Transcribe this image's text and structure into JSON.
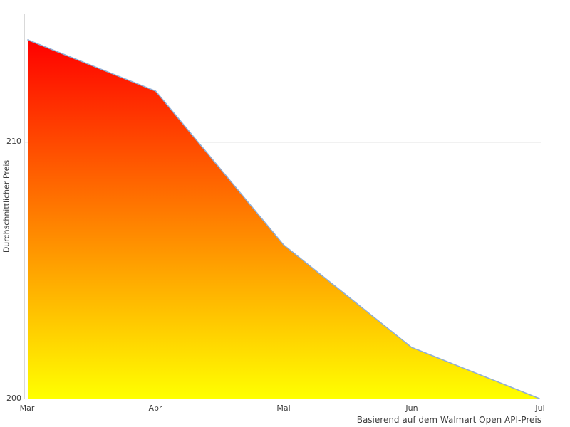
{
  "chart_data": {
    "type": "area",
    "categories": [
      "Mar",
      "Apr",
      "Mai",
      "Jun",
      "Jul"
    ],
    "values": [
      214,
      212,
      206,
      202,
      200
    ],
    "title": "",
    "xlabel": "Basierend auf dem Walmart Open API-Preis",
    "ylabel": "Durchschnittlicher Preis",
    "ylim": [
      200,
      215
    ],
    "y_tick_values": [
      200,
      210
    ],
    "y_tick_labels": [
      "200",
      "210"
    ],
    "gridline_values": [
      210
    ],
    "grid": "horizontal-only",
    "legend": "none",
    "colors": {
      "area_gradient_top": "#ff0000",
      "area_gradient_bottom": "#ffff00",
      "line": "#8fadd4",
      "plot_border": "#d9d9d9",
      "gridline": "#e3e3e3",
      "text": "#3c3c3c",
      "background": "#ffffff"
    }
  }
}
